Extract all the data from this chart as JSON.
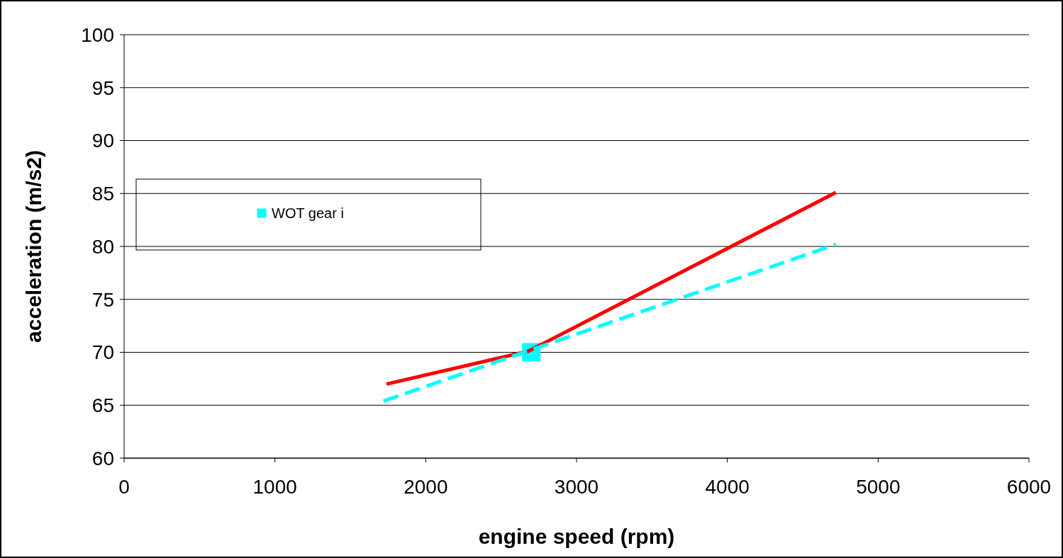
{
  "chart_data": {
    "type": "line",
    "xlabel": "engine speed (rpm)",
    "ylabel": "acceleration (m/s2)",
    "xlim": [
      0,
      6000
    ],
    "xticks": [
      0,
      1000,
      2000,
      3000,
      4000,
      5000,
      6000
    ],
    "ylim": [
      60,
      100
    ],
    "yticks": [
      60,
      65,
      70,
      75,
      80,
      85,
      90,
      95,
      100
    ],
    "grid": "y",
    "legend": "left",
    "series": [
      {
        "color": "#ff0000",
        "x": [
          1740,
          2680,
          4720
        ],
        "values": [
          67,
          70.1,
          85.1
        ],
        "line_style": "solid",
        "marker": "none"
      },
      {
        "color": "#00ffff",
        "x": [
          1720,
          4720
        ],
        "values": [
          65.4,
          80.2
        ],
        "line_style": "dashed",
        "marker": "none"
      },
      {
        "type": "scatter",
        "name": "WOT gear i",
        "color": "#00ffff",
        "x": [
          2700
        ],
        "values": [
          70
        ],
        "marker": "square"
      }
    ]
  }
}
